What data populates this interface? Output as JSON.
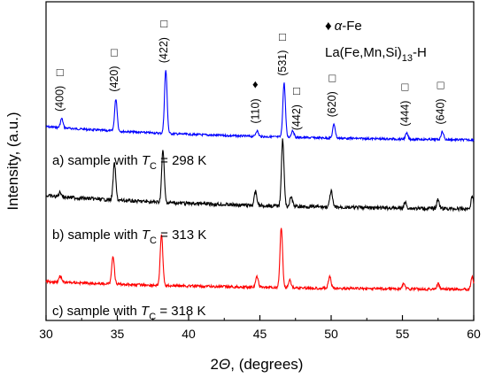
{
  "chart_data": {
    "type": "line",
    "xlabel": {
      "prefix": "2",
      "var": "Θ",
      "suffix": ", (degrees)"
    },
    "ylabel": "Intensity, (a.u.)",
    "xlim": [
      30,
      60
    ],
    "xticks": [
      30,
      35,
      40,
      45,
      50,
      55,
      60
    ],
    "legend": {
      "marker_note": {
        "symbol": "♦",
        "var": "α",
        "text": "-Fe"
      },
      "phase": {
        "text": "La(Fe,Mn,Si)",
        "sub": "13",
        "suffix": "-H"
      }
    },
    "series": [
      {
        "color": "#0000ff",
        "label": {
          "text": "a) sample with ",
          "var": "T",
          "sub": "C",
          "value": " = 298 K"
        },
        "baseline": 0.13,
        "peaks": [
          {
            "x": 31.1,
            "h": 0.08
          },
          {
            "x": 34.9,
            "h": 0.28
          },
          {
            "x": 38.4,
            "h": 0.55
          },
          {
            "x": 44.8,
            "h": 0.05
          },
          {
            "x": 46.7,
            "h": 0.47
          },
          {
            "x": 47.3,
            "h": 0.06
          },
          {
            "x": 50.2,
            "h": 0.12
          },
          {
            "x": 55.3,
            "h": 0.05
          },
          {
            "x": 57.8,
            "h": 0.07
          }
        ]
      },
      {
        "color": "#000000",
        "label": {
          "text": "b) sample with ",
          "var": "T",
          "sub": "C",
          "value": " = 313 K"
        },
        "baseline": 0.13,
        "peaks": [
          {
            "x": 31.0,
            "h": 0.04
          },
          {
            "x": 34.8,
            "h": 0.32
          },
          {
            "x": 38.2,
            "h": 0.45
          },
          {
            "x": 44.7,
            "h": 0.12
          },
          {
            "x": 46.6,
            "h": 0.58
          },
          {
            "x": 47.2,
            "h": 0.08
          },
          {
            "x": 50.0,
            "h": 0.14
          },
          {
            "x": 55.2,
            "h": 0.05
          },
          {
            "x": 57.5,
            "h": 0.08
          },
          {
            "x": 59.9,
            "h": 0.11
          }
        ]
      },
      {
        "color": "#ff0000",
        "label": {
          "text": "c) sample with ",
          "var": "T",
          "sub": "C",
          "value": " = 318 K"
        },
        "baseline": 0.1,
        "peaks": [
          {
            "x": 31.0,
            "h": 0.07
          },
          {
            "x": 34.7,
            "h": 0.32
          },
          {
            "x": 38.1,
            "h": 0.58
          },
          {
            "x": 44.8,
            "h": 0.12
          },
          {
            "x": 46.5,
            "h": 0.68
          },
          {
            "x": 47.1,
            "h": 0.09
          },
          {
            "x": 49.9,
            "h": 0.13
          },
          {
            "x": 55.1,
            "h": 0.06
          },
          {
            "x": 57.5,
            "h": 0.06
          },
          {
            "x": 59.9,
            "h": 0.14
          }
        ]
      }
    ],
    "annotations": [
      {
        "text": "(400)",
        "x": 31.1,
        "marker": "□"
      },
      {
        "text": "(420)",
        "x": 34.9,
        "marker": "□"
      },
      {
        "text": "(422)",
        "x": 38.4,
        "marker": "□"
      },
      {
        "text": "(110)",
        "x": 44.8,
        "marker": "♦"
      },
      {
        "text": "(531)",
        "x": 46.7,
        "marker": "□"
      },
      {
        "text": "(442)",
        "x": 47.7,
        "marker": "□"
      },
      {
        "text": "(620)",
        "x": 50.2,
        "marker": "□"
      },
      {
        "text": "(444)",
        "x": 55.3,
        "marker": "□"
      },
      {
        "text": "(640)",
        "x": 57.8,
        "marker": "□"
      }
    ]
  }
}
